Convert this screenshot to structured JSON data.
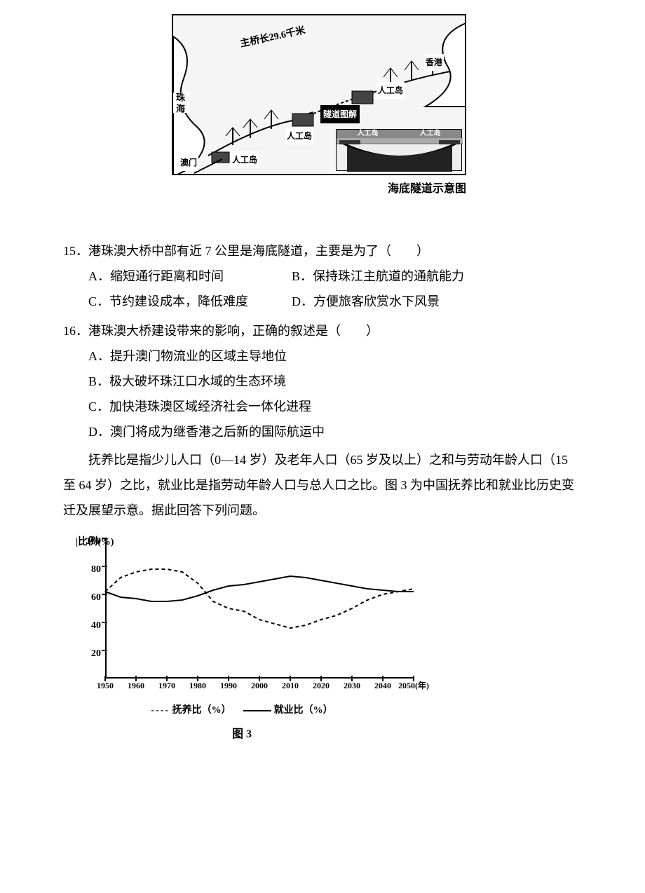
{
  "map": {
    "bridge_length_label": "主桥长29.6千米",
    "labels": {
      "zhuhai": "珠\n海",
      "macau": "澳门",
      "hk": "香港",
      "island1": "人工岛",
      "island2": "人工岛",
      "island3": "人工岛",
      "tunnel_diagram": "隧道图解"
    },
    "inset": {
      "left": "人工岛",
      "right": "人工岛"
    },
    "caption": "海底隧道示意图",
    "border_color": "#000000",
    "bg_color": "#f5f5f5"
  },
  "q15": {
    "stem": "15．港珠澳大桥中部有近 7 公里是海底隧道，主要是为了（　　）",
    "A": "A．缩短通行距离和时间",
    "B": "B．保持珠江主航道的通航能力",
    "C": "C．节约建设成本，降低难度",
    "D": "D．方便旅客欣赏水下风景"
  },
  "q16": {
    "stem": "16．港珠澳大桥建设带来的影响，正确的叙述是（　　）",
    "A": "A．提升澳门物流业的区域主导地位",
    "B": "B．极大破坏珠江口水域的生态环境",
    "C": "C．加快港珠澳区域经济社会一体化进程",
    "D": "D．澳门将成为继香港之后新的国际航运中"
  },
  "passage": "　　抚养比是指少儿人口（0—14 岁）及老年人口（65 岁及以上）之和与劳动年龄人口（15 至 64 岁）之比，就业比是指劳动年龄人口与总人口之比。图 3 为中国抚养比和就业比历史变迁及展望示意。据此回答下列问题。",
  "chart": {
    "y_axis_label": "比例(%)",
    "ylim": [
      0,
      100
    ],
    "ytick_step": 20,
    "yticks": [
      20,
      40,
      60,
      80,
      100
    ],
    "xlim": [
      1950,
      2050
    ],
    "xtick_step": 10,
    "xticks": [
      1950,
      1960,
      1970,
      1980,
      1990,
      2000,
      2010,
      2020,
      2030,
      2040,
      2050
    ],
    "x_unit_label": "(年)",
    "axis_color": "#000000",
    "background_color": "#ffffff",
    "font_size_ticks": 14,
    "series": {
      "dependency_ratio": {
        "label": "抚养比（%）",
        "style": "dashed",
        "color": "#000000",
        "data": [
          {
            "x": 1950,
            "y": 62
          },
          {
            "x": 1955,
            "y": 72
          },
          {
            "x": 1960,
            "y": 76
          },
          {
            "x": 1965,
            "y": 78
          },
          {
            "x": 1970,
            "y": 78
          },
          {
            "x": 1975,
            "y": 76
          },
          {
            "x": 1980,
            "y": 68
          },
          {
            "x": 1985,
            "y": 55
          },
          {
            "x": 1990,
            "y": 50
          },
          {
            "x": 1995,
            "y": 48
          },
          {
            "x": 2000,
            "y": 42
          },
          {
            "x": 2005,
            "y": 39
          },
          {
            "x": 2010,
            "y": 36
          },
          {
            "x": 2015,
            "y": 38
          },
          {
            "x": 2020,
            "y": 42
          },
          {
            "x": 2025,
            "y": 45
          },
          {
            "x": 2030,
            "y": 50
          },
          {
            "x": 2035,
            "y": 56
          },
          {
            "x": 2040,
            "y": 60
          },
          {
            "x": 2045,
            "y": 62
          },
          {
            "x": 2050,
            "y": 64
          }
        ]
      },
      "employment_ratio": {
        "label": "就业比（%）",
        "style": "solid",
        "color": "#000000",
        "data": [
          {
            "x": 1950,
            "y": 62
          },
          {
            "x": 1955,
            "y": 58
          },
          {
            "x": 1960,
            "y": 57
          },
          {
            "x": 1965,
            "y": 55
          },
          {
            "x": 1970,
            "y": 55
          },
          {
            "x": 1975,
            "y": 56
          },
          {
            "x": 1980,
            "y": 59
          },
          {
            "x": 1985,
            "y": 63
          },
          {
            "x": 1990,
            "y": 66
          },
          {
            "x": 1995,
            "y": 67
          },
          {
            "x": 2000,
            "y": 69
          },
          {
            "x": 2005,
            "y": 71
          },
          {
            "x": 2010,
            "y": 73
          },
          {
            "x": 2015,
            "y": 72
          },
          {
            "x": 2020,
            "y": 70
          },
          {
            "x": 2025,
            "y": 68
          },
          {
            "x": 2030,
            "y": 66
          },
          {
            "x": 2035,
            "y": 64
          },
          {
            "x": 2040,
            "y": 63
          },
          {
            "x": 2045,
            "y": 62
          },
          {
            "x": 2050,
            "y": 62
          }
        ]
      }
    },
    "legend_prefix_dash": "----",
    "caption": "图 3"
  }
}
